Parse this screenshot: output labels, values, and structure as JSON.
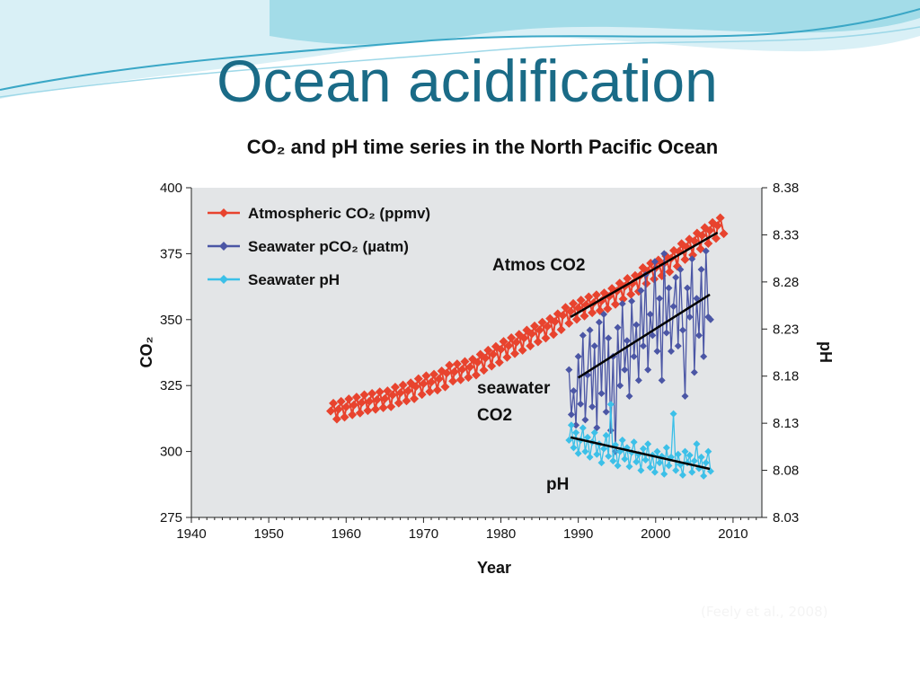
{
  "slide": {
    "title": "Ocean acidification",
    "citation": "(Feely et al., 2008)"
  },
  "colors": {
    "title": "#1a6b87",
    "atmospheric": "#e8432e",
    "seawater_pco2": "#4b56a5",
    "seawater_ph": "#3cc0e8",
    "plot_background": "#e3e5e7",
    "trend": "#000000"
  },
  "chart_data": {
    "type": "line",
    "title": "CO₂ and pH time series in the North Pacific Ocean",
    "xlabel": "Year",
    "ylabel": "CO₂",
    "y2label": "pH",
    "xlim": [
      1940,
      2015
    ],
    "ylim": [
      275,
      400
    ],
    "y2lim": [
      8.03,
      8.38
    ],
    "xticks": [
      1940,
      1950,
      1960,
      1970,
      1980,
      1990,
      2000,
      2010
    ],
    "yticks": [
      275,
      300,
      325,
      350,
      375,
      400
    ],
    "y2ticks": [
      "8.03",
      "8.08",
      "8.13",
      "8.18",
      "8.23",
      "8.28",
      "8.33",
      "8.38"
    ],
    "legend_position": "top-left",
    "grid": false,
    "series": [
      {
        "name": "Atmospheric CO₂ (ppmv)",
        "axis": "left",
        "marker": "diamond",
        "annual_mean_years": [
          1958,
          1959,
          1960,
          1961,
          1962,
          1963,
          1964,
          1965,
          1966,
          1967,
          1968,
          1969,
          1970,
          1971,
          1972,
          1973,
          1974,
          1975,
          1976,
          1977,
          1978,
          1979,
          1980,
          1981,
          1982,
          1983,
          1984,
          1985,
          1986,
          1987,
          1988,
          1989,
          1990,
          1991,
          1992,
          1993,
          1994,
          1995,
          1996,
          1997,
          1998,
          1999,
          2000,
          2001,
          2002,
          2003,
          2004,
          2005,
          2006,
          2007,
          2008
        ],
        "annual_mean": [
          315.3,
          316.0,
          316.9,
          317.6,
          318.5,
          319.0,
          319.6,
          320.0,
          321.4,
          322.2,
          323.0,
          324.6,
          325.7,
          326.3,
          327.5,
          329.7,
          330.2,
          331.1,
          332.0,
          333.8,
          335.4,
          336.8,
          338.7,
          340.1,
          341.4,
          343.0,
          344.6,
          346.0,
          347.4,
          349.2,
          351.6,
          353.1,
          354.4,
          355.6,
          356.4,
          357.1,
          358.8,
          360.8,
          362.6,
          363.7,
          366.7,
          368.4,
          369.6,
          371.1,
          373.2,
          375.8,
          377.5,
          379.8,
          381.9,
          383.8,
          385.6
        ],
        "seasonal_amplitude": 3
      },
      {
        "name": "Seawater pCO₂ (µatm)",
        "axis": "left",
        "marker": "diamond",
        "x": [
          1988.8,
          1989.1,
          1989.4,
          1989.7,
          1990.0,
          1990.3,
          1990.6,
          1990.9,
          1991.2,
          1991.5,
          1991.8,
          1992.1,
          1992.4,
          1992.7,
          1993.0,
          1993.3,
          1993.6,
          1993.9,
          1994.2,
          1994.5,
          1994.8,
          1995.1,
          1995.4,
          1995.7,
          1996.0,
          1996.3,
          1996.6,
          1996.9,
          1997.2,
          1997.5,
          1997.8,
          1998.1,
          1998.4,
          1998.7,
          1999.0,
          1999.3,
          1999.6,
          1999.9,
          2000.2,
          2000.5,
          2000.8,
          2001.1,
          2001.4,
          2001.7,
          2002.0,
          2002.3,
          2002.6,
          2002.9,
          2003.2,
          2003.5,
          2003.8,
          2004.1,
          2004.4,
          2004.7,
          2005.0,
          2005.3,
          2005.6,
          2005.9,
          2006.2,
          2006.5,
          2006.8,
          2007.1
        ],
        "y": [
          331,
          314,
          323,
          310,
          336,
          318,
          344,
          312,
          329,
          346,
          317,
          340,
          309,
          349,
          322,
          352,
          315,
          343,
          308,
          336,
          300,
          347,
          325,
          356,
          331,
          342,
          321,
          357,
          336,
          348,
          327,
          361,
          340,
          367,
          331,
          352,
          344,
          372,
          338,
          358,
          327,
          375,
          345,
          362,
          338,
          355,
          366,
          340,
          369,
          346,
          321,
          362,
          351,
          373,
          330,
          358,
          344,
          369,
          336,
          376,
          351,
          350
        ],
        "trend": {
          "x": [
            1990,
            2007
          ],
          "y": [
            328,
            359.5
          ]
        }
      },
      {
        "name": "Seawater pH",
        "axis": "right",
        "marker": "diamond",
        "x": [
          1988.8,
          1989.1,
          1989.4,
          1989.7,
          1990.0,
          1990.3,
          1990.6,
          1990.9,
          1991.2,
          1991.5,
          1991.8,
          1992.1,
          1992.4,
          1992.7,
          1993.0,
          1993.3,
          1993.6,
          1993.9,
          1994.2,
          1994.5,
          1994.8,
          1995.1,
          1995.4,
          1995.7,
          1996.0,
          1996.3,
          1996.6,
          1996.9,
          1997.2,
          1997.5,
          1997.8,
          1998.1,
          1998.4,
          1998.7,
          1999.0,
          1999.3,
          1999.6,
          1999.9,
          2000.2,
          2000.5,
          2000.8,
          2001.1,
          2001.4,
          2001.7,
          2002.0,
          2002.3,
          2002.6,
          2002.9,
          2003.2,
          2003.5,
          2003.8,
          2004.1,
          2004.4,
          2004.7,
          2005.0,
          2005.3,
          2005.6,
          2005.9,
          2006.2,
          2006.5,
          2006.8,
          2007.1
        ],
        "y": [
          8.112,
          8.128,
          8.104,
          8.12,
          8.098,
          8.112,
          8.125,
          8.1,
          8.115,
          8.094,
          8.11,
          8.12,
          8.097,
          8.108,
          8.088,
          8.103,
          8.117,
          8.095,
          8.15,
          8.09,
          8.107,
          8.085,
          8.1,
          8.112,
          8.092,
          8.104,
          8.084,
          8.099,
          8.11,
          8.089,
          8.097,
          8.08,
          8.103,
          8.091,
          8.108,
          8.083,
          8.096,
          8.078,
          8.1,
          8.088,
          8.095,
          8.076,
          8.104,
          8.085,
          8.094,
          8.14,
          8.08,
          8.097,
          8.086,
          8.075,
          8.1,
          8.088,
          8.096,
          8.078,
          8.09,
          8.108,
          8.082,
          8.094,
          8.074,
          8.088,
          8.1,
          8.079
        ],
        "trend": {
          "x": [
            1989,
            2007
          ],
          "y": [
            8.115,
            8.0815
          ]
        }
      }
    ],
    "atmospheric_trend": {
      "x": [
        1989,
        2008
      ],
      "y": [
        351,
        383
      ]
    },
    "annotations": {
      "atmos": "Atmos CO2",
      "seawater_line1": "seawater",
      "seawater_line2": "CO2",
      "ph": "pH"
    }
  }
}
